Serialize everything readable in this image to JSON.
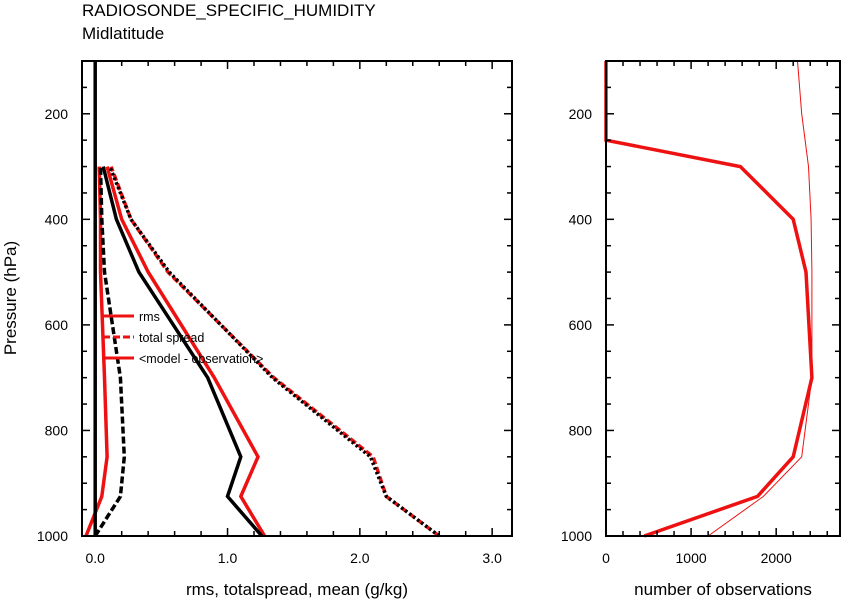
{
  "title_lines": [
    "RADIOSONDE_SPECIFIC_HUMIDITY",
    "Midlatitude"
  ],
  "colors": {
    "red": "#ee1111",
    "black": "#000000"
  },
  "chart_data": [
    {
      "type": "line",
      "xlabel": "rms, totalspread, mean (g/kg)",
      "ylabel": "Pressure (hPa)",
      "xlim": [
        -0.1,
        3.15
      ],
      "ylim": [
        1000,
        100
      ],
      "y_inverted": true,
      "xticks": [
        0,
        1,
        2,
        3
      ],
      "xtick_labels": [
        "0.0",
        "1.0",
        "2.0",
        "3.0"
      ],
      "yticks": [
        200,
        400,
        600,
        800,
        1000
      ],
      "ytick_labels": [
        "200",
        "400",
        "600",
        "800",
        "1000"
      ],
      "legend": {
        "placement": "center-left",
        "entries": [
          "rms",
          "total spread",
          "<model - observation>"
        ]
      },
      "series": [
        {
          "name": "rms",
          "color": "red",
          "style": "solid",
          "width": 3.5,
          "x": [
            1.28,
            1.1,
            1.23,
            0.9,
            0.4,
            0.2,
            0.09
          ],
          "y": [
            1000,
            925,
            850,
            700,
            500,
            400,
            300
          ]
        },
        {
          "name": "total spread",
          "color": "red",
          "style": "dashed",
          "width": 3.5,
          "x": [
            2.6,
            2.2,
            2.1,
            1.35,
            0.55,
            0.27,
            0.12
          ],
          "y": [
            1000,
            925,
            850,
            700,
            500,
            400,
            300
          ]
        },
        {
          "name": "<model - observation>",
          "color": "red",
          "style": "solid",
          "width": 3.5,
          "x": [
            -0.07,
            0.05,
            0.09,
            0.07,
            0.04,
            0.04,
            0.03
          ],
          "y": [
            1000,
            925,
            850,
            700,
            500,
            400,
            300
          ]
        },
        {
          "color": "black",
          "style": "solid",
          "width": 3.5,
          "x": [
            1.26,
            1.0,
            1.1,
            0.85,
            0.33,
            0.16,
            0.06
          ],
          "y": [
            1000,
            925,
            850,
            700,
            500,
            400,
            300
          ]
        },
        {
          "color": "black",
          "style": "dotted",
          "width": 3.5,
          "x": [
            2.6,
            2.2,
            2.08,
            1.34,
            0.56,
            0.27,
            0.11
          ],
          "y": [
            1000,
            925,
            850,
            700,
            500,
            400,
            300
          ]
        },
        {
          "color": "black",
          "style": "dashed",
          "width": 3.5,
          "x": [
            0.0,
            0.19,
            0.22,
            0.19,
            0.07,
            0.05,
            0.04
          ],
          "y": [
            1000,
            925,
            850,
            700,
            500,
            400,
            300
          ]
        },
        {
          "color": "black",
          "style": "solid",
          "width": 3.5,
          "x": [
            0,
            0
          ],
          "y": [
            1000,
            100
          ]
        }
      ]
    },
    {
      "type": "line",
      "xlabel": "number of observations",
      "xlim": [
        0,
        2750
      ],
      "ylim": [
        1000,
        100
      ],
      "y_inverted": true,
      "xticks": [
        0,
        1000,
        2000
      ],
      "xtick_labels": [
        "0",
        "1000",
        "2000"
      ],
      "yticks": [
        200,
        400,
        600,
        800,
        1000
      ],
      "ytick_labels": [
        "200",
        "400",
        "600",
        "800",
        "1000"
      ],
      "series": [
        {
          "color": "red",
          "style": "solid",
          "width": 3.5,
          "x": [
            450,
            1780,
            2200,
            2420,
            2350,
            2200,
            1580,
            0,
            0
          ],
          "y": [
            1000,
            925,
            850,
            700,
            500,
            400,
            300,
            250,
            100
          ]
        },
        {
          "color": "red",
          "style": "solid",
          "width": 1,
          "x": [
            1200,
            1850,
            2300,
            2420,
            2420,
            2410,
            2380,
            2300,
            2250
          ],
          "y": [
            1000,
            925,
            850,
            700,
            500,
            400,
            300,
            200,
            100
          ]
        }
      ]
    }
  ]
}
